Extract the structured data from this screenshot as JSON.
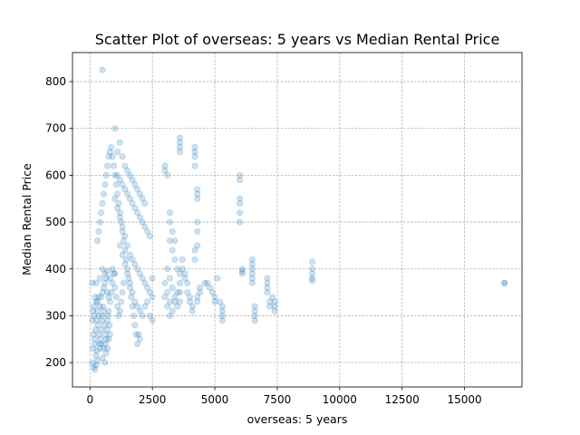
{
  "chart_data": {
    "type": "scatter",
    "title": "Scatter Plot of overseas: 5 years vs Median Rental Price",
    "xlabel": "overseas: 5 years",
    "ylabel": "Median Rental Price",
    "xlim": [
      -700,
      17300
    ],
    "ylim": [
      148,
      862
    ],
    "x_ticks": [
      0,
      2500,
      5000,
      7500,
      10000,
      12500,
      15000
    ],
    "x_tick_labels": [
      "0",
      "2500",
      "5000",
      "7500",
      "10000",
      "12500",
      "15000"
    ],
    "y_ticks": [
      200,
      300,
      400,
      500,
      600,
      700,
      800
    ],
    "y_tick_labels": [
      "200",
      "300",
      "400",
      "500",
      "600",
      "700",
      "800"
    ],
    "grid": true,
    "point_color": "#1f77b4",
    "point_alpha": 0.22,
    "points": [
      [
        100,
        200
      ],
      [
        150,
        190
      ],
      [
        200,
        185
      ],
      [
        250,
        195
      ],
      [
        300,
        205
      ],
      [
        120,
        230
      ],
      [
        180,
        250
      ],
      [
        220,
        270
      ],
      [
        260,
        290
      ],
      [
        300,
        310
      ],
      [
        140,
        260
      ],
      [
        200,
        240
      ],
      [
        240,
        215
      ],
      [
        280,
        225
      ],
      [
        160,
        300
      ],
      [
        320,
        280
      ],
      [
        350,
        260
      ],
      [
        380,
        240
      ],
      [
        400,
        230
      ],
      [
        420,
        250
      ],
      [
        450,
        270
      ],
      [
        480,
        290
      ],
      [
        500,
        300
      ],
      [
        520,
        320
      ],
      [
        550,
        310
      ],
      [
        580,
        280
      ],
      [
        600,
        260
      ],
      [
        620,
        240
      ],
      [
        650,
        250
      ],
      [
        680,
        270
      ],
      [
        700,
        290
      ],
      [
        720,
        300
      ],
      [
        750,
        310
      ],
      [
        780,
        280
      ],
      [
        800,
        260
      ],
      [
        350,
        300
      ],
      [
        400,
        320
      ],
      [
        450,
        340
      ],
      [
        500,
        350
      ],
      [
        550,
        360
      ],
      [
        600,
        370
      ],
      [
        650,
        380
      ],
      [
        700,
        350
      ],
      [
        750,
        340
      ],
      [
        800,
        330
      ],
      [
        850,
        350
      ],
      [
        900,
        370
      ],
      [
        950,
        390
      ],
      [
        1000,
        360
      ],
      [
        1050,
        340
      ],
      [
        1100,
        320
      ],
      [
        1150,
        300
      ],
      [
        1200,
        310
      ],
      [
        1250,
        330
      ],
      [
        1300,
        350
      ],
      [
        1350,
        370
      ],
      [
        400,
        380
      ],
      [
        500,
        400
      ],
      [
        600,
        390
      ],
      [
        700,
        395
      ],
      [
        800,
        380
      ],
      [
        900,
        400
      ],
      [
        1000,
        390
      ],
      [
        100,
        370
      ],
      [
        250,
        370
      ],
      [
        300,
        330
      ],
      [
        350,
        340
      ],
      [
        150,
        320
      ],
      [
        200,
        340
      ],
      [
        250,
        330
      ],
      [
        100,
        290
      ],
      [
        120,
        310
      ],
      [
        450,
        240
      ],
      [
        550,
        230
      ],
      [
        650,
        220
      ],
      [
        700,
        230
      ],
      [
        750,
        250
      ],
      [
        500,
        210
      ],
      [
        600,
        200
      ],
      [
        300,
        460
      ],
      [
        350,
        480
      ],
      [
        400,
        500
      ],
      [
        450,
        520
      ],
      [
        500,
        540
      ],
      [
        550,
        560
      ],
      [
        600,
        580
      ],
      [
        650,
        600
      ],
      [
        700,
        620
      ],
      [
        750,
        640
      ],
      [
        800,
        650
      ],
      [
        850,
        660
      ],
      [
        900,
        640
      ],
      [
        950,
        620
      ],
      [
        1000,
        600
      ],
      [
        1050,
        580
      ],
      [
        1100,
        560
      ],
      [
        1150,
        540
      ],
      [
        1200,
        520
      ],
      [
        1250,
        500
      ],
      [
        1300,
        480
      ],
      [
        1350,
        460
      ],
      [
        1400,
        440
      ],
      [
        1450,
        420
      ],
      [
        1500,
        400
      ],
      [
        1550,
        380
      ],
      [
        1600,
        360
      ],
      [
        1650,
        340
      ],
      [
        1700,
        320
      ],
      [
        1750,
        300
      ],
      [
        1800,
        280
      ],
      [
        1850,
        260
      ],
      [
        1900,
        240
      ],
      [
        1950,
        260
      ],
      [
        2000,
        250
      ],
      [
        1000,
        700
      ],
      [
        1200,
        670
      ],
      [
        1100,
        650
      ],
      [
        1300,
        640
      ],
      [
        1400,
        620
      ],
      [
        1500,
        610
      ],
      [
        1600,
        600
      ],
      [
        1700,
        590
      ],
      [
        1800,
        580
      ],
      [
        1900,
        570
      ],
      [
        2000,
        560
      ],
      [
        2100,
        550
      ],
      [
        2200,
        540
      ],
      [
        1000,
        550
      ],
      [
        1100,
        530
      ],
      [
        1200,
        510
      ],
      [
        1300,
        490
      ],
      [
        1400,
        470
      ],
      [
        1500,
        450
      ],
      [
        1600,
        430
      ],
      [
        1700,
        420
      ],
      [
        1800,
        410
      ],
      [
        1900,
        400
      ],
      [
        2000,
        390
      ],
      [
        2100,
        380
      ],
      [
        2200,
        370
      ],
      [
        2300,
        360
      ],
      [
        2400,
        350
      ],
      [
        2500,
        340
      ],
      [
        1200,
        450
      ],
      [
        1300,
        430
      ],
      [
        1400,
        410
      ],
      [
        1500,
        390
      ],
      [
        1600,
        370
      ],
      [
        1700,
        350
      ],
      [
        1800,
        330
      ],
      [
        1900,
        320
      ],
      [
        2000,
        310
      ],
      [
        2100,
        300
      ],
      [
        2200,
        320
      ],
      [
        2300,
        330
      ],
      [
        2400,
        300
      ],
      [
        2500,
        290
      ],
      [
        1100,
        600
      ],
      [
        1200,
        590
      ],
      [
        1300,
        580
      ],
      [
        1400,
        570
      ],
      [
        1500,
        560
      ],
      [
        1600,
        550
      ],
      [
        1700,
        540
      ],
      [
        1800,
        530
      ],
      [
        1900,
        520
      ],
      [
        2000,
        510
      ],
      [
        2100,
        500
      ],
      [
        2200,
        490
      ],
      [
        2300,
        480
      ],
      [
        2400,
        470
      ],
      [
        2500,
        380
      ],
      [
        3000,
        620
      ],
      [
        3000,
        610
      ],
      [
        3100,
        600
      ],
      [
        3200,
        520
      ],
      [
        3200,
        500
      ],
      [
        3300,
        480
      ],
      [
        3400,
        460
      ],
      [
        3200,
        460
      ],
      [
        3300,
        440
      ],
      [
        3400,
        420
      ],
      [
        3100,
        400
      ],
      [
        3200,
        380
      ],
      [
        3300,
        360
      ],
      [
        3400,
        340
      ],
      [
        3100,
        320
      ],
      [
        3200,
        300
      ],
      [
        3300,
        310
      ],
      [
        3400,
        330
      ],
      [
        3500,
        350
      ],
      [
        3000,
        370
      ],
      [
        3100,
        350
      ],
      [
        3200,
        330
      ],
      [
        3000,
        340
      ],
      [
        3500,
        400
      ],
      [
        3600,
        680
      ],
      [
        3600,
        670
      ],
      [
        3600,
        660
      ],
      [
        3600,
        650
      ],
      [
        3700,
        420
      ],
      [
        3700,
        400
      ],
      [
        3800,
        390
      ],
      [
        3800,
        380
      ],
      [
        3900,
        370
      ],
      [
        3900,
        350
      ],
      [
        4000,
        340
      ],
      [
        4000,
        330
      ],
      [
        4100,
        320
      ],
      [
        4100,
        310
      ],
      [
        3600,
        390
      ],
      [
        3600,
        370
      ],
      [
        3600,
        350
      ],
      [
        3600,
        330
      ],
      [
        3500,
        320
      ],
      [
        4200,
        660
      ],
      [
        4200,
        650
      ],
      [
        4200,
        640
      ],
      [
        4200,
        620
      ],
      [
        4300,
        570
      ],
      [
        4300,
        560
      ],
      [
        4300,
        550
      ],
      [
        4300,
        500
      ],
      [
        4300,
        480
      ],
      [
        4300,
        450
      ],
      [
        4200,
        440
      ],
      [
        4200,
        420
      ],
      [
        4400,
        360
      ],
      [
        4400,
        350
      ],
      [
        4300,
        340
      ],
      [
        4300,
        330
      ],
      [
        4600,
        370
      ],
      [
        4700,
        370
      ],
      [
        4800,
        360
      ],
      [
        4900,
        350
      ],
      [
        5000,
        340
      ],
      [
        5000,
        330
      ],
      [
        5100,
        380
      ],
      [
        5200,
        330
      ],
      [
        5300,
        320
      ],
      [
        5300,
        300
      ],
      [
        5300,
        290
      ],
      [
        5300,
        310
      ],
      [
        6000,
        600
      ],
      [
        6000,
        590
      ],
      [
        6000,
        550
      ],
      [
        6000,
        540
      ],
      [
        6000,
        520
      ],
      [
        6000,
        500
      ],
      [
        6100,
        400
      ],
      [
        6100,
        395
      ],
      [
        6100,
        390
      ],
      [
        6500,
        420
      ],
      [
        6500,
        410
      ],
      [
        6500,
        400
      ],
      [
        6500,
        390
      ],
      [
        6500,
        380
      ],
      [
        6500,
        370
      ],
      [
        6600,
        320
      ],
      [
        6600,
        310
      ],
      [
        6600,
        300
      ],
      [
        6600,
        290
      ],
      [
        7100,
        380
      ],
      [
        7100,
        370
      ],
      [
        7100,
        360
      ],
      [
        7100,
        350
      ],
      [
        7200,
        330
      ],
      [
        7200,
        320
      ],
      [
        7300,
        340
      ],
      [
        7400,
        330
      ],
      [
        7400,
        320
      ],
      [
        7400,
        310
      ],
      [
        8900,
        415
      ],
      [
        8900,
        400
      ],
      [
        8900,
        390
      ],
      [
        8900,
        380
      ],
      [
        8900,
        375
      ],
      [
        16600,
        370
      ],
      [
        16600,
        370
      ],
      [
        500,
        825
      ]
    ]
  }
}
